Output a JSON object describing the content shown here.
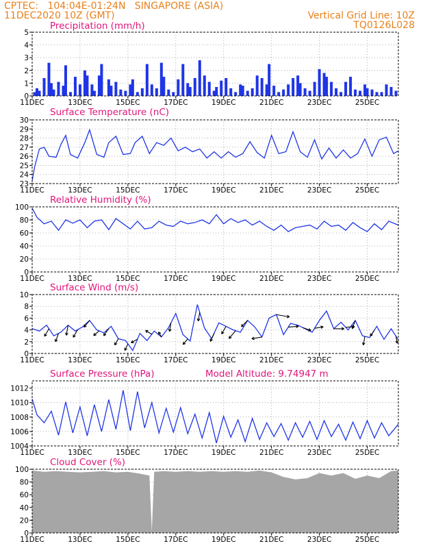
{
  "header": {
    "line1_left": "CPTEC:   104:04E-01:24N   SINGAPORE (ASIA)",
    "line2_left": "11DEC2020 10Z (GMT)",
    "line1_right": "Vertical Grid Line: 10Z",
    "line2_right": "TQ0126L028"
  },
  "x_axis": {
    "ticks": [
      "11DEC",
      "13DEC",
      "15DEC",
      "17DEC",
      "19DEC",
      "21DEC",
      "23DEC",
      "25DEC"
    ],
    "tick_day_offsets": [
      0,
      2,
      4,
      6,
      8,
      10,
      12,
      14
    ],
    "span_days": 15.3
  },
  "colors": {
    "header": "#e8801a",
    "title": "#e0157a",
    "series": "#1f35e6",
    "cloud": "#a6a6a6",
    "wind_arrow": "#000000"
  },
  "chart_data": [
    {
      "type": "bar",
      "title": "Precipitation  (mm/h)",
      "ylim": [
        0,
        5
      ],
      "yticks": [
        "0",
        "1",
        "2",
        "3",
        "4",
        "5"
      ],
      "x_day_offset": [
        0.1,
        0.2,
        0.3,
        0.5,
        0.7,
        0.8,
        0.9,
        1.1,
        1.3,
        1.4,
        1.6,
        1.8,
        2.0,
        2.2,
        2.3,
        2.5,
        2.6,
        2.8,
        2.9,
        3.2,
        3.3,
        3.5,
        3.7,
        3.9,
        4.1,
        4.2,
        4.4,
        4.6,
        4.8,
        5.0,
        5.2,
        5.4,
        5.5,
        5.7,
        5.9,
        6.1,
        6.3,
        6.5,
        6.6,
        6.8,
        7.0,
        7.2,
        7.4,
        7.6,
        7.7,
        7.9,
        8.1,
        8.3,
        8.5,
        8.7,
        8.8,
        9.0,
        9.2,
        9.4,
        9.6,
        9.8,
        9.9,
        10.1,
        10.3,
        10.5,
        10.7,
        10.9,
        11.1,
        11.2,
        11.4,
        11.6,
        11.8,
        12.0,
        12.2,
        12.3,
        12.5,
        12.7,
        12.9,
        13.1,
        13.3,
        13.5,
        13.7,
        13.9,
        14.0,
        14.2,
        14.4,
        14.6,
        14.8,
        15.0,
        15.2
      ],
      "values": [
        0.3,
        0.6,
        0.4,
        1.4,
        2.6,
        1.0,
        0.5,
        1.1,
        0.8,
        2.4,
        0.3,
        1.5,
        0.9,
        2.0,
        1.6,
        0.9,
        0.4,
        1.6,
        2.5,
        1.3,
        0.8,
        1.1,
        0.5,
        0.4,
        0.9,
        1.3,
        0.3,
        0.6,
        2.5,
        0.9,
        0.6,
        2.6,
        1.5,
        0.5,
        0.3,
        1.3,
        2.5,
        1.0,
        0.7,
        1.4,
        2.8,
        1.6,
        1.1,
        0.4,
        0.7,
        1.2,
        1.4,
        0.6,
        0.3,
        0.9,
        0.8,
        0.4,
        0.6,
        1.6,
        1.4,
        0.9,
        2.5,
        0.8,
        0.3,
        0.5,
        0.9,
        1.4,
        1.6,
        1.0,
        0.6,
        0.4,
        1.1,
        2.1,
        1.8,
        1.5,
        1.1,
        0.6,
        0.3,
        1.1,
        1.5,
        0.5,
        0.4,
        0.9,
        0.6,
        0.5,
        0.3,
        0.3,
        0.9,
        0.7,
        0.4
      ]
    },
    {
      "type": "line",
      "title": "Surface Temperature (nC)",
      "ylim": [
        23,
        30
      ],
      "yticks": [
        "23",
        "24",
        "25",
        "26",
        "27",
        "28",
        "29",
        "30"
      ],
      "x_day_offset": [
        0,
        0.1,
        0.3,
        0.5,
        0.7,
        1.0,
        1.2,
        1.4,
        1.6,
        1.9,
        2.2,
        2.4,
        2.7,
        3.0,
        3.2,
        3.5,
        3.8,
        4.1,
        4.3,
        4.6,
        4.9,
        5.2,
        5.5,
        5.8,
        6.1,
        6.4,
        6.7,
        7.0,
        7.3,
        7.6,
        7.9,
        8.2,
        8.5,
        8.8,
        9.1,
        9.4,
        9.7,
        10.0,
        10.3,
        10.6,
        10.9,
        11.2,
        11.5,
        11.8,
        12.1,
        12.4,
        12.7,
        13.0,
        13.3,
        13.6,
        13.9,
        14.2,
        14.5,
        14.8,
        15.1,
        15.3
      ],
      "values": [
        23.3,
        24.8,
        26.8,
        27.0,
        26.0,
        25.9,
        27.3,
        28.3,
        26.2,
        25.8,
        27.5,
        28.9,
        26.2,
        25.9,
        27.5,
        28.2,
        26.2,
        26.3,
        27.5,
        28.2,
        26.3,
        27.5,
        27.2,
        28.0,
        26.6,
        27.0,
        26.5,
        26.8,
        25.8,
        26.5,
        25.8,
        26.5,
        25.9,
        26.3,
        27.6,
        26.4,
        25.8,
        28.3,
        26.3,
        26.5,
        28.7,
        26.5,
        25.9,
        27.8,
        25.7,
        26.9,
        25.8,
        26.7,
        25.8,
        26.3,
        27.9,
        26.0,
        27.8,
        28.1,
        26.3,
        26.6
      ]
    },
    {
      "type": "line",
      "title": "Relative Humidity  (%)",
      "ylim": [
        0,
        100
      ],
      "yticks": [
        "0",
        "20",
        "40",
        "60",
        "80",
        "100"
      ],
      "x_day_offset": [
        0,
        0.2,
        0.5,
        0.8,
        1.1,
        1.4,
        1.7,
        2.0,
        2.3,
        2.6,
        2.9,
        3.2,
        3.5,
        3.8,
        4.1,
        4.4,
        4.7,
        5.0,
        5.3,
        5.6,
        5.9,
        6.2,
        6.5,
        6.8,
        7.1,
        7.4,
        7.7,
        8.0,
        8.3,
        8.6,
        8.9,
        9.2,
        9.5,
        9.8,
        10.1,
        10.4,
        10.7,
        11.0,
        11.3,
        11.6,
        11.9,
        12.2,
        12.5,
        12.8,
        13.1,
        13.4,
        13.7,
        14.0,
        14.3,
        14.6,
        14.9,
        15.3
      ],
      "values": [
        98,
        84,
        74,
        78,
        64,
        80,
        75,
        80,
        68,
        78,
        80,
        65,
        82,
        74,
        66,
        78,
        66,
        68,
        78,
        72,
        70,
        78,
        74,
        76,
        80,
        74,
        88,
        74,
        82,
        76,
        80,
        72,
        78,
        70,
        64,
        72,
        62,
        68,
        70,
        72,
        66,
        78,
        70,
        72,
        64,
        76,
        68,
        62,
        74,
        65,
        78,
        72
      ]
    },
    {
      "type": "line",
      "title": "Surface  Wind  (m/s)",
      "ylim": [
        0,
        10
      ],
      "yticks": [
        "0",
        "2",
        "4",
        "6",
        "8",
        "10"
      ],
      "x_day_offset": [
        0,
        0.3,
        0.6,
        0.9,
        1.2,
        1.5,
        1.8,
        2.1,
        2.4,
        2.7,
        3.0,
        3.3,
        3.6,
        3.9,
        4.2,
        4.5,
        4.8,
        5.1,
        5.4,
        5.7,
        6.0,
        6.3,
        6.6,
        6.9,
        7.2,
        7.5,
        7.8,
        8.1,
        8.4,
        8.7,
        9.0,
        9.3,
        9.6,
        9.9,
        10.2,
        10.5,
        10.8,
        11.1,
        11.4,
        11.7,
        12.0,
        12.3,
        12.6,
        12.9,
        13.2,
        13.5,
        13.8,
        14.1,
        14.4,
        14.7,
        15.0,
        15.3
      ],
      "values": [
        4.2,
        3.8,
        4.8,
        3.0,
        3.6,
        4.8,
        3.8,
        4.5,
        5.6,
        4.0,
        3.5,
        4.6,
        2.5,
        2.2,
        0.5,
        3.4,
        2.2,
        3.8,
        2.8,
        4.4,
        6.8,
        3.2,
        2.1,
        8.3,
        4.3,
        2.5,
        5.2,
        4.6,
        4.0,
        3.6,
        5.6,
        4.5,
        2.8,
        6.0,
        6.6,
        3.2,
        5.1,
        4.8,
        4.2,
        3.6,
        5.6,
        7.2,
        4.2,
        5.3,
        4.0,
        5.6,
        3.0,
        2.7,
        4.6,
        2.4,
        4.2,
        2.3
      ],
      "arrow_day_offset": [
        0.7,
        1.1,
        1.5,
        1.9,
        2.4,
        2.8,
        3.2,
        3.6,
        4.0,
        4.4,
        5.0,
        5.4,
        5.8,
        6.5,
        7.0,
        7.6,
        8.1,
        8.5,
        9.0,
        9.6,
        10.2,
        10.7,
        11.3,
        11.8,
        12.6,
        13.1,
        13.5,
        13.9,
        14.3,
        15.2
      ],
      "arrow_speed": [
        4,
        4,
        5,
        4,
        4,
        3,
        4,
        3,
        3,
        3,
        3,
        2,
        4,
        3,
        4,
        4,
        4,
        5,
        4,
        5,
        7,
        5,
        4,
        4,
        5,
        4,
        4,
        4,
        3,
        3
      ],
      "arrow_angle_deg": [
        120,
        110,
        100,
        120,
        130,
        140,
        125,
        120,
        115,
        150,
        210,
        240,
        100,
        130,
        100,
        115,
        120,
        130,
        135,
        170,
        10,
        -5,
        20,
        -10,
        0,
        -5,
        110,
        100,
        125,
        80
      ]
    },
    {
      "type": "line",
      "title": "Surface Pressure (hPa)",
      "annotation": "Model Altitude: 9.74947 m",
      "ylim": [
        1004,
        1013
      ],
      "yticks": [
        "1004",
        "1006",
        "1008",
        "1010",
        "1012"
      ],
      "x_day_offset": [
        0,
        0.2,
        0.5,
        0.8,
        1.1,
        1.4,
        1.7,
        2.0,
        2.3,
        2.6,
        2.9,
        3.2,
        3.5,
        3.8,
        4.1,
        4.4,
        4.7,
        5.0,
        5.3,
        5.6,
        5.9,
        6.2,
        6.5,
        6.8,
        7.1,
        7.4,
        7.7,
        8.0,
        8.3,
        8.6,
        8.9,
        9.2,
        9.5,
        9.8,
        10.1,
        10.4,
        10.7,
        11.0,
        11.3,
        11.6,
        11.9,
        12.2,
        12.5,
        12.8,
        13.1,
        13.4,
        13.7,
        14.0,
        14.3,
        14.6,
        14.9,
        15.3
      ],
      "values": [
        1010.5,
        1008.3,
        1007.2,
        1008.8,
        1005.5,
        1010.1,
        1005.8,
        1009.4,
        1005.4,
        1009.7,
        1006.0,
        1010.4,
        1006.3,
        1011.7,
        1006.1,
        1011.5,
        1006.5,
        1010.0,
        1005.8,
        1009.2,
        1005.9,
        1009.3,
        1005.7,
        1008.4,
        1005.1,
        1008.6,
        1004.4,
        1008.1,
        1005.2,
        1007.6,
        1004.6,
        1007.8,
        1004.9,
        1007.2,
        1005.3,
        1007.1,
        1004.8,
        1007.2,
        1005.2,
        1007.4,
        1004.9,
        1007.5,
        1005.3,
        1007.0,
        1004.8,
        1007.3,
        1005.0,
        1007.5,
        1005.1,
        1007.2,
        1005.4,
        1007.0
      ]
    },
    {
      "type": "area",
      "title": "Cloud Cover  (%)",
      "ylim": [
        0,
        100
      ],
      "yticks": [
        "0",
        "20",
        "40",
        "60",
        "80",
        "100"
      ],
      "x_day_offset": [
        0,
        0.5,
        1.0,
        1.5,
        2.0,
        2.5,
        3.0,
        3.5,
        4.0,
        4.5,
        4.9,
        5.0,
        5.1,
        5.5,
        6.0,
        6.5,
        7.0,
        7.5,
        8.0,
        8.5,
        9.0,
        9.5,
        10.0,
        10.5,
        11.0,
        11.5,
        12.0,
        12.5,
        13.0,
        13.5,
        14.0,
        14.5,
        15.0,
        15.3
      ],
      "values": [
        98,
        96,
        97,
        96,
        95,
        96,
        97,
        95,
        96,
        93,
        90,
        2,
        96,
        97,
        96,
        97,
        96,
        97,
        96,
        97,
        96,
        98,
        95,
        88,
        84,
        86,
        94,
        90,
        94,
        85,
        90,
        86,
        97,
        98
      ]
    }
  ]
}
